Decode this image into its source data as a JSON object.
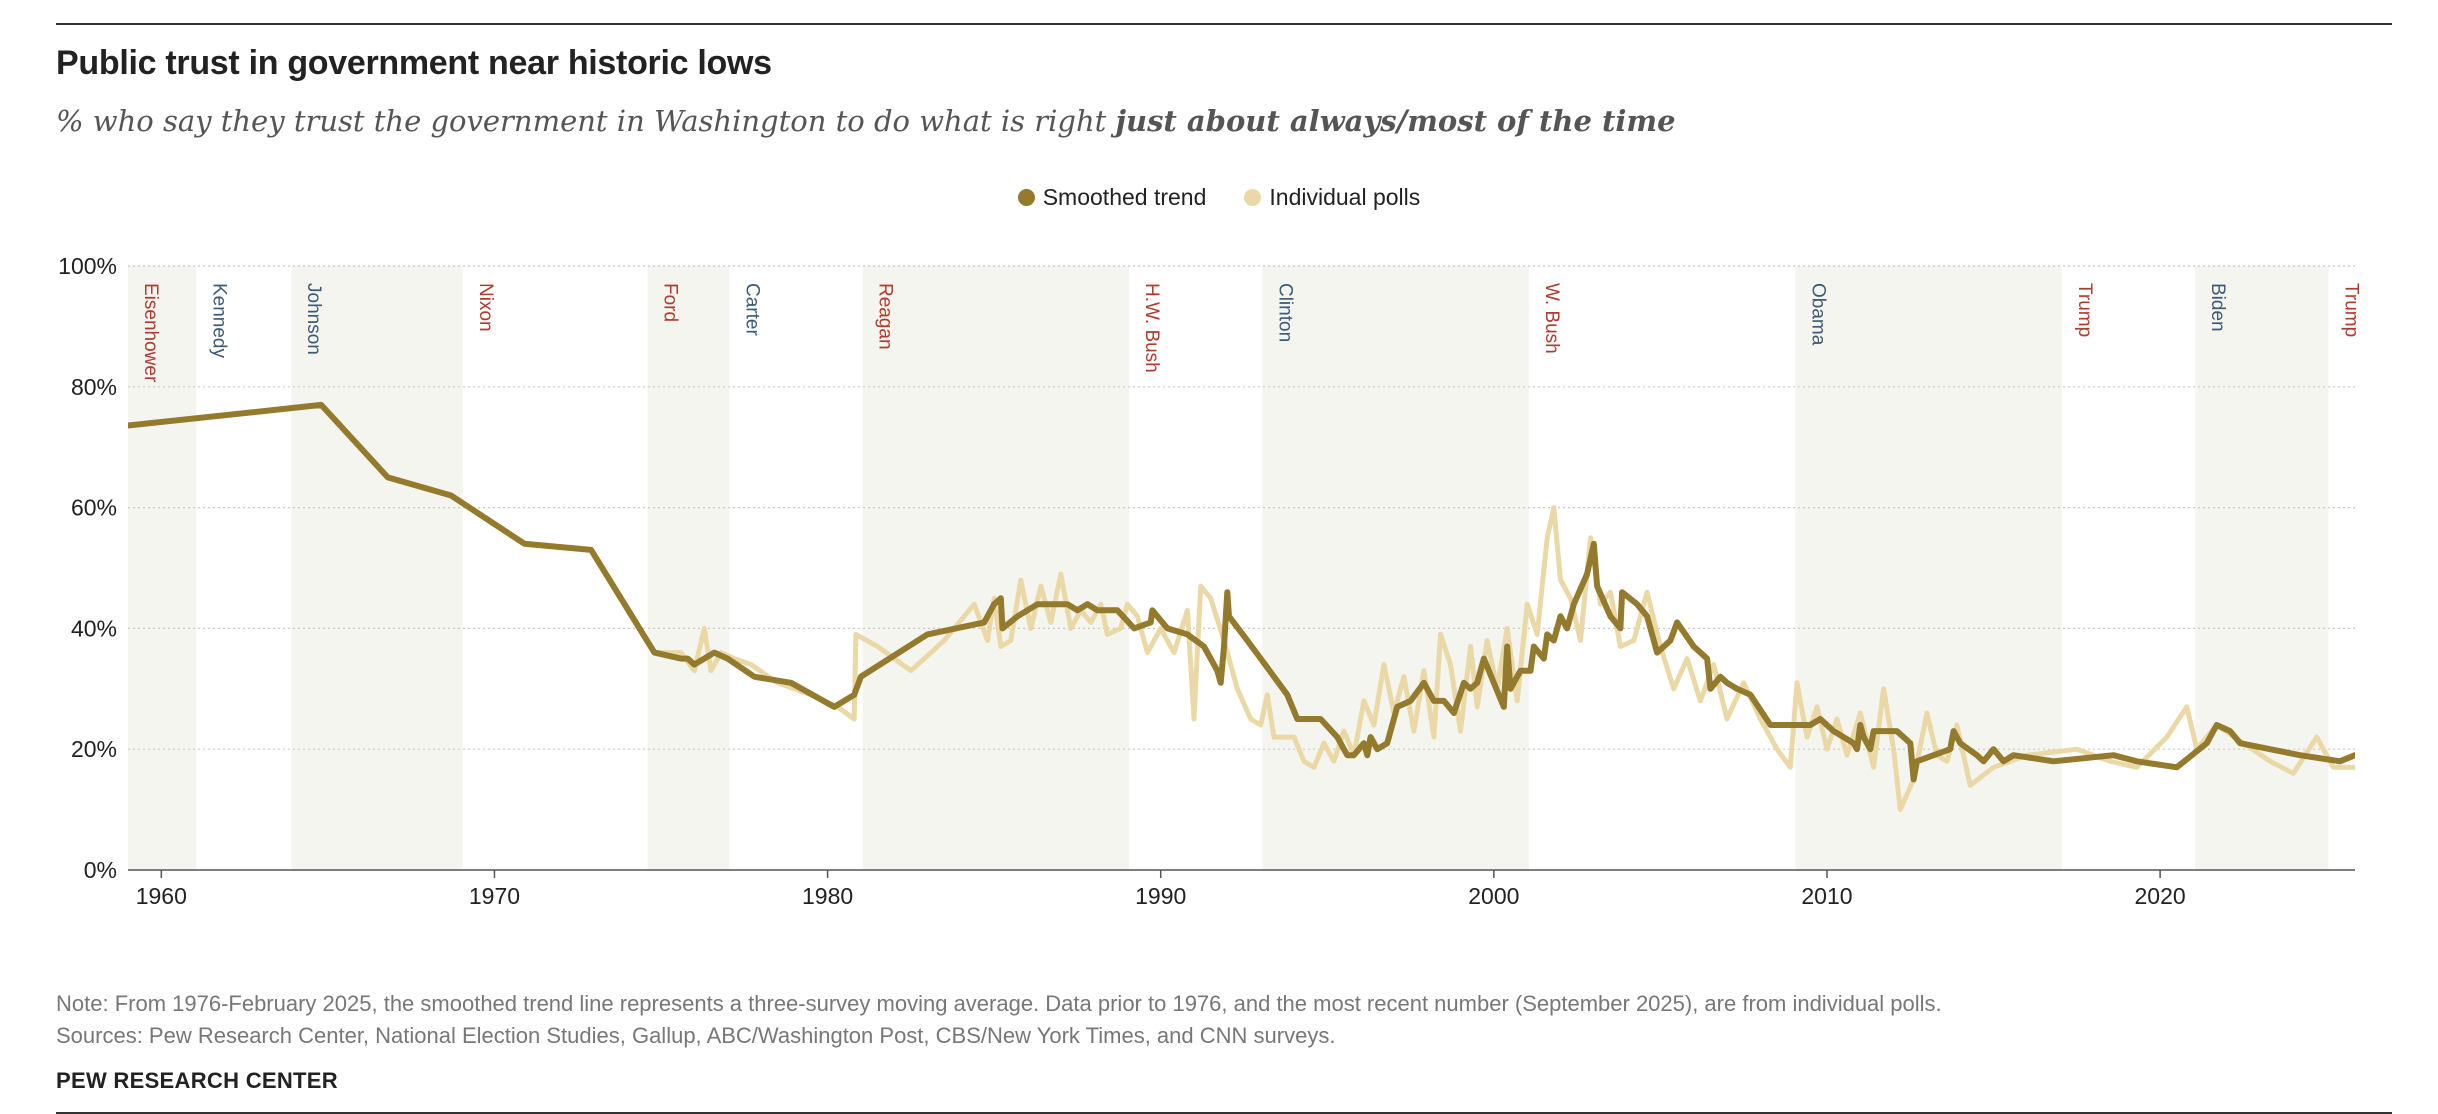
{
  "header": {
    "title": "Public trust in government near historic lows",
    "subtitle_plain": "% who say they trust the government in Washington to do what is right ",
    "subtitle_bold": "just about always/most of the time"
  },
  "footer": {
    "note": "Note: From 1976-February 2025, the smoothed trend line represents a three-survey moving average. Data prior to 1976, and the most recent number (September 2025), are from individual polls.",
    "sources": "Sources: Pew Research Center, National Election Studies, Gallup, ABC/Washington Post, CBS/New York Times, and CNN surveys.",
    "org": "PEW RESEARCH CENTER"
  },
  "colors": {
    "smoothed": "#947a2c",
    "polls": "#ead9a6",
    "band": "#f5f5f0",
    "republican": "#b03a2e",
    "democrat": "#3b5a75",
    "grid": "#c8c8c8",
    "axis": "#555555"
  },
  "chart_data": {
    "type": "line",
    "title": "Public trust in government near historic lows",
    "xlabel": "",
    "ylabel": "",
    "xlim": [
      1959.0,
      2025.85
    ],
    "ylim": [
      0,
      100
    ],
    "yticks": [
      0,
      20,
      40,
      60,
      80,
      100
    ],
    "ytick_labels": [
      "0%",
      "20%",
      "40%",
      "60%",
      "80%",
      "100%"
    ],
    "xticks": [
      1960,
      1970,
      1980,
      1990,
      2000,
      2010,
      2020
    ],
    "xtick_labels": [
      "1960",
      "1970",
      "1980",
      "1990",
      "2000",
      "2010",
      "2020"
    ],
    "grid": "horizontal dotted",
    "legend": "top-center",
    "presidents": [
      {
        "name": "Eisenhower",
        "start": 1959.0,
        "end": 1961.05,
        "party": "R",
        "shaded": true
      },
      {
        "name": "Kennedy",
        "start": 1961.05,
        "end": 1963.9,
        "party": "D",
        "shaded": false
      },
      {
        "name": "Johnson",
        "start": 1963.9,
        "end": 1969.05,
        "party": "D",
        "shaded": true
      },
      {
        "name": "Nixon",
        "start": 1969.05,
        "end": 1974.6,
        "party": "R",
        "shaded": false
      },
      {
        "name": "Ford",
        "start": 1974.6,
        "end": 1977.05,
        "party": "R",
        "shaded": true
      },
      {
        "name": "Carter",
        "start": 1977.05,
        "end": 1981.05,
        "party": "D",
        "shaded": false
      },
      {
        "name": "Reagan",
        "start": 1981.05,
        "end": 1989.05,
        "party": "R",
        "shaded": true
      },
      {
        "name": "H.W. Bush",
        "start": 1989.05,
        "end": 1993.05,
        "party": "R",
        "shaded": false
      },
      {
        "name": "Clinton",
        "start": 1993.05,
        "end": 2001.05,
        "party": "D",
        "shaded": true
      },
      {
        "name": "W. Bush",
        "start": 2001.05,
        "end": 2009.05,
        "party": "R",
        "shaded": false
      },
      {
        "name": "Obama",
        "start": 2009.05,
        "end": 2017.05,
        "party": "D",
        "shaded": true
      },
      {
        "name": "Trump",
        "start": 2017.05,
        "end": 2021.05,
        "party": "R",
        "shaded": false
      },
      {
        "name": "Biden",
        "start": 2021.05,
        "end": 2025.05,
        "party": "D",
        "shaded": true
      },
      {
        "name": "Trump",
        "start": 2025.05,
        "end": 2025.85,
        "party": "R",
        "shaded": false
      }
    ],
    "series": [
      {
        "name": "Individual polls",
        "points": [
          [
            1974.8,
            36
          ],
          [
            1975.6,
            36
          ],
          [
            1976.0,
            33
          ],
          [
            1976.3,
            40
          ],
          [
            1976.5,
            33
          ],
          [
            1976.8,
            36
          ],
          [
            1977.2,
            35
          ],
          [
            1977.7,
            34
          ],
          [
            1978.5,
            31
          ],
          [
            1979.5,
            29
          ],
          [
            1980.3,
            27
          ],
          [
            1980.8,
            25
          ],
          [
            1980.85,
            39
          ],
          [
            1981.5,
            37
          ],
          [
            1982.5,
            33
          ],
          [
            1983.5,
            38
          ],
          [
            1984.4,
            44
          ],
          [
            1984.8,
            38
          ],
          [
            1985.0,
            45
          ],
          [
            1985.2,
            37
          ],
          [
            1985.5,
            38
          ],
          [
            1985.8,
            48
          ],
          [
            1986.1,
            40
          ],
          [
            1986.4,
            47
          ],
          [
            1986.7,
            41
          ],
          [
            1987.0,
            49
          ],
          [
            1987.3,
            40
          ],
          [
            1987.6,
            43
          ],
          [
            1987.9,
            41
          ],
          [
            1988.2,
            44
          ],
          [
            1988.4,
            39
          ],
          [
            1988.8,
            40
          ],
          [
            1989.0,
            44
          ],
          [
            1989.3,
            42
          ],
          [
            1989.6,
            36
          ],
          [
            1990.0,
            40
          ],
          [
            1990.4,
            36
          ],
          [
            1990.8,
            43
          ],
          [
            1991.0,
            25
          ],
          [
            1991.2,
            47
          ],
          [
            1991.5,
            45
          ],
          [
            1991.9,
            38
          ],
          [
            1992.3,
            30
          ],
          [
            1992.7,
            25
          ],
          [
            1993.0,
            24
          ],
          [
            1993.2,
            29
          ],
          [
            1993.4,
            22
          ],
          [
            1993.7,
            22
          ],
          [
            1994.0,
            22
          ],
          [
            1994.3,
            18
          ],
          [
            1994.6,
            17
          ],
          [
            1994.9,
            21
          ],
          [
            1995.2,
            18
          ],
          [
            1995.5,
            23
          ],
          [
            1995.8,
            19
          ],
          [
            1996.1,
            28
          ],
          [
            1996.4,
            24
          ],
          [
            1996.7,
            34
          ],
          [
            1997.0,
            26
          ],
          [
            1997.3,
            32
          ],
          [
            1997.6,
            23
          ],
          [
            1997.9,
            33
          ],
          [
            1998.2,
            22
          ],
          [
            1998.4,
            39
          ],
          [
            1998.7,
            34
          ],
          [
            1999.0,
            23
          ],
          [
            1999.3,
            37
          ],
          [
            1999.5,
            27
          ],
          [
            1999.8,
            38
          ],
          [
            2000.1,
            30
          ],
          [
            2000.4,
            40
          ],
          [
            2000.7,
            28
          ],
          [
            2001.0,
            44
          ],
          [
            2001.3,
            39
          ],
          [
            2001.6,
            55
          ],
          [
            2001.8,
            60
          ],
          [
            2002.0,
            48
          ],
          [
            2002.3,
            45
          ],
          [
            2002.6,
            38
          ],
          [
            2002.9,
            55
          ],
          [
            2003.2,
            44
          ],
          [
            2003.5,
            46
          ],
          [
            2003.8,
            37
          ],
          [
            2004.2,
            38
          ],
          [
            2004.6,
            46
          ],
          [
            2005.0,
            37
          ],
          [
            2005.4,
            30
          ],
          [
            2005.8,
            35
          ],
          [
            2006.2,
            28
          ],
          [
            2006.6,
            34
          ],
          [
            2007.0,
            25
          ],
          [
            2007.5,
            31
          ],
          [
            2008.0,
            25
          ],
          [
            2008.5,
            20
          ],
          [
            2008.9,
            17
          ],
          [
            2009.1,
            31
          ],
          [
            2009.4,
            22
          ],
          [
            2009.7,
            27
          ],
          [
            2010.0,
            20
          ],
          [
            2010.3,
            25
          ],
          [
            2010.6,
            19
          ],
          [
            2011.0,
            26
          ],
          [
            2011.4,
            17
          ],
          [
            2011.7,
            30
          ],
          [
            2012.0,
            20
          ],
          [
            2012.2,
            10
          ],
          [
            2012.6,
            15
          ],
          [
            2013.0,
            26
          ],
          [
            2013.3,
            19
          ],
          [
            2013.6,
            18
          ],
          [
            2013.9,
            24
          ],
          [
            2014.3,
            14
          ],
          [
            2015.0,
            17
          ],
          [
            2016.0,
            19
          ],
          [
            2017.5,
            20
          ],
          [
            2018.5,
            18
          ],
          [
            2019.3,
            17
          ],
          [
            2020.2,
            22
          ],
          [
            2020.8,
            27
          ],
          [
            2021.1,
            20
          ],
          [
            2021.7,
            24
          ],
          [
            2022.5,
            21
          ],
          [
            2023.3,
            18
          ],
          [
            2024.0,
            16
          ],
          [
            2024.7,
            22
          ],
          [
            2025.2,
            17
          ],
          [
            2025.85,
            17
          ]
        ]
      },
      {
        "name": "Smoothed trend",
        "points": [
          [
            1958.0,
            73
          ],
          [
            1964.8,
            77
          ],
          [
            1966.8,
            65
          ],
          [
            1968.7,
            62
          ],
          [
            1970.9,
            54
          ],
          [
            1972.9,
            53
          ],
          [
            1974.8,
            36
          ],
          [
            1975.6,
            35
          ],
          [
            1975.8,
            35
          ],
          [
            1976.0,
            34
          ],
          [
            1976.3,
            35
          ],
          [
            1976.6,
            36
          ],
          [
            1977.0,
            35
          ],
          [
            1977.8,
            32
          ],
          [
            1978.9,
            31
          ],
          [
            1980.2,
            27
          ],
          [
            1980.8,
            29
          ],
          [
            1981.0,
            32
          ],
          [
            1983.0,
            39
          ],
          [
            1984.7,
            41
          ],
          [
            1985.0,
            44
          ],
          [
            1985.2,
            45
          ],
          [
            1985.25,
            40
          ],
          [
            1985.7,
            42
          ],
          [
            1986.3,
            44
          ],
          [
            1987.2,
            44
          ],
          [
            1987.5,
            43
          ],
          [
            1987.8,
            44
          ],
          [
            1988.1,
            43
          ],
          [
            1988.7,
            43
          ],
          [
            1989.2,
            40
          ],
          [
            1989.7,
            41
          ],
          [
            1989.75,
            43
          ],
          [
            1990.2,
            40
          ],
          [
            1990.8,
            39
          ],
          [
            1991.3,
            37
          ],
          [
            1991.7,
            33
          ],
          [
            1991.8,
            31
          ],
          [
            1991.9,
            37
          ],
          [
            1992.0,
            46
          ],
          [
            1992.05,
            42
          ],
          [
            1992.6,
            38
          ],
          [
            1993.0,
            35
          ],
          [
            1993.8,
            29
          ],
          [
            1994.1,
            25
          ],
          [
            1994.8,
            25
          ],
          [
            1995.3,
            22
          ],
          [
            1995.5,
            20
          ],
          [
            1995.6,
            19
          ],
          [
            1995.8,
            19
          ],
          [
            1996.1,
            21
          ],
          [
            1996.2,
            19
          ],
          [
            1996.3,
            22
          ],
          [
            1996.5,
            20
          ],
          [
            1996.8,
            21
          ],
          [
            1997.1,
            27
          ],
          [
            1997.5,
            28
          ],
          [
            1997.9,
            31
          ],
          [
            1998.2,
            28
          ],
          [
            1998.5,
            28
          ],
          [
            1998.8,
            26
          ],
          [
            1999.1,
            31
          ],
          [
            1999.3,
            30
          ],
          [
            1999.5,
            31
          ],
          [
            1999.7,
            35
          ],
          [
            2000.0,
            31
          ],
          [
            2000.3,
            27
          ],
          [
            2000.4,
            37
          ],
          [
            2000.5,
            30
          ],
          [
            2000.8,
            33
          ],
          [
            2001.1,
            33
          ],
          [
            2001.2,
            37
          ],
          [
            2001.5,
            35
          ],
          [
            2001.6,
            39
          ],
          [
            2001.8,
            38
          ],
          [
            2002.0,
            42
          ],
          [
            2002.2,
            40
          ],
          [
            2002.4,
            44
          ],
          [
            2002.8,
            49
          ],
          [
            2003.0,
            54
          ],
          [
            2003.1,
            47
          ],
          [
            2003.5,
            42
          ],
          [
            2003.8,
            40
          ],
          [
            2003.85,
            46
          ],
          [
            2004.3,
            44
          ],
          [
            2004.6,
            42
          ],
          [
            2004.9,
            36
          ],
          [
            2005.3,
            38
          ],
          [
            2005.5,
            41
          ],
          [
            2006.0,
            37
          ],
          [
            2006.4,
            35
          ],
          [
            2006.5,
            30
          ],
          [
            2006.8,
            32
          ],
          [
            2007.0,
            31
          ],
          [
            2007.3,
            30
          ],
          [
            2007.7,
            29
          ],
          [
            2008.3,
            24
          ],
          [
            2009.0,
            24
          ],
          [
            2009.5,
            24
          ],
          [
            2009.8,
            25
          ],
          [
            2010.2,
            23
          ],
          [
            2010.8,
            21
          ],
          [
            2010.9,
            20
          ],
          [
            2011.0,
            24
          ],
          [
            2011.1,
            22
          ],
          [
            2011.3,
            20
          ],
          [
            2011.4,
            23
          ],
          [
            2011.7,
            23
          ],
          [
            2012.1,
            23
          ],
          [
            2012.5,
            21
          ],
          [
            2012.6,
            15
          ],
          [
            2012.7,
            18
          ],
          [
            2013.2,
            19
          ],
          [
            2013.7,
            20
          ],
          [
            2013.8,
            23
          ],
          [
            2014.0,
            21
          ],
          [
            2014.5,
            19
          ],
          [
            2014.7,
            18
          ],
          [
            2015.0,
            20
          ],
          [
            2015.3,
            18
          ],
          [
            2015.6,
            19
          ],
          [
            2016.8,
            18
          ],
          [
            2018.6,
            19
          ],
          [
            2019.3,
            18
          ],
          [
            2020.5,
            17
          ],
          [
            2021.4,
            21
          ],
          [
            2021.7,
            24
          ],
          [
            2022.1,
            23
          ],
          [
            2022.4,
            21
          ],
          [
            2024.2,
            19
          ],
          [
            2025.4,
            18
          ],
          [
            2025.85,
            19
          ],
          [
            2026.4,
            17
          ]
        ]
      }
    ]
  }
}
